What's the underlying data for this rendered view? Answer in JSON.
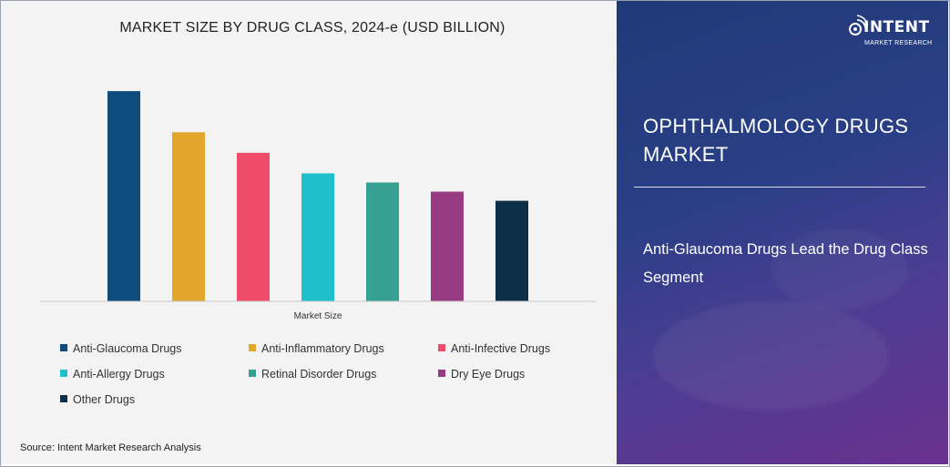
{
  "chart_data": {
    "type": "bar",
    "title": "MARKET SIZE BY DRUG CLASS, 2024-e (USD BILLION)",
    "xlabel": "Market Size",
    "ylabel": "",
    "ylim": [
      0,
      10
    ],
    "grid": false,
    "legend_position": "bottom",
    "series": [
      {
        "name": "Anti-Glaucoma Drugs",
        "values": [
          9.2
        ],
        "color": "#0d4c7c"
      },
      {
        "name": "Anti-Inflammatory Drugs",
        "values": [
          7.4
        ],
        "color": "#e2a62b"
      },
      {
        "name": "Anti-Infective Drugs",
        "values": [
          6.5
        ],
        "color": "#ef4c69"
      },
      {
        "name": "Anti-Allergy Drugs",
        "values": [
          5.6
        ],
        "color": "#1fc0cb"
      },
      {
        "name": "Retinal Disorder Drugs",
        "values": [
          5.2
        ],
        "color": "#36a192"
      },
      {
        "name": "Dry Eye Drugs",
        "values": [
          4.8
        ],
        "color": "#973b82"
      },
      {
        "name": "Other Drugs",
        "values": [
          4.4
        ],
        "color": "#0d3048"
      }
    ]
  },
  "source": "Source:  Intent Market Research Analysis",
  "panel": {
    "headline": "OPHTHALMOLOGY DRUGS MARKET",
    "subhead": "Anti-Glaucoma Drugs Lead the Drug Class Segment"
  },
  "logo": {
    "name": "INTENT",
    "sub": "MARKET RESEARCH",
    "icon": "signal-eye-icon"
  }
}
